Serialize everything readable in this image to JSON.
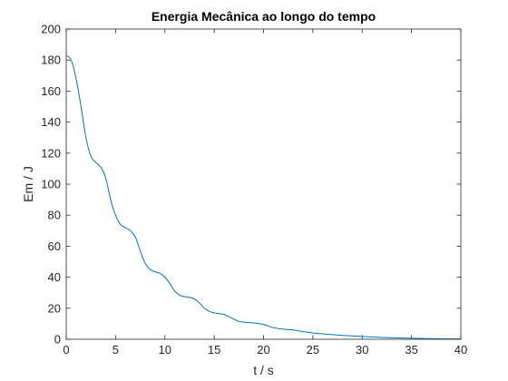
{
  "chart_data": {
    "type": "line",
    "title": "Energia Mecânica ao longo do tempo",
    "xlabel": "t / s",
    "ylabel": "Em / J",
    "xlim": [
      0,
      40
    ],
    "ylim": [
      0,
      200
    ],
    "xticks": [
      0,
      5,
      10,
      15,
      20,
      25,
      30,
      35,
      40
    ],
    "yticks": [
      0,
      20,
      40,
      60,
      80,
      100,
      120,
      140,
      160,
      180,
      200
    ],
    "grid": false,
    "box": true,
    "series": [
      {
        "color": "#0072bd",
        "x": [
          0,
          0.5,
          1.0,
          1.5,
          2.0,
          2.5,
          3.0,
          3.5,
          4.0,
          4.5,
          5.0,
          5.5,
          6.0,
          6.5,
          7.0,
          7.5,
          8.0,
          8.5,
          9.0,
          9.5,
          10.0,
          10.5,
          11.0,
          11.5,
          12.0,
          12.5,
          13.0,
          13.5,
          14.0,
          14.5,
          15.0,
          15.5,
          16.0,
          16.5,
          17.0,
          17.5,
          18.0,
          19.0,
          20.0,
          21.0,
          22.0,
          23.0,
          24.0,
          25.0,
          26.0,
          27.0,
          28.0,
          30.0,
          32.0,
          34.0,
          36.0,
          38.0,
          40.0
        ],
        "y": [
          183,
          180,
          168,
          150,
          130,
          118,
          114,
          111,
          104,
          90,
          80,
          74,
          72,
          70,
          66,
          57,
          49,
          45,
          43.5,
          42.5,
          40,
          36,
          31,
          28.5,
          27.5,
          27,
          26,
          23.5,
          20,
          18,
          17,
          16.5,
          16,
          14.5,
          13,
          11.5,
          11,
          10.5,
          9.5,
          7.5,
          6.5,
          6,
          5,
          4,
          3.5,
          3,
          2.5,
          1.8,
          1.2,
          0.8,
          0.5,
          0.3,
          0.2
        ]
      }
    ]
  }
}
